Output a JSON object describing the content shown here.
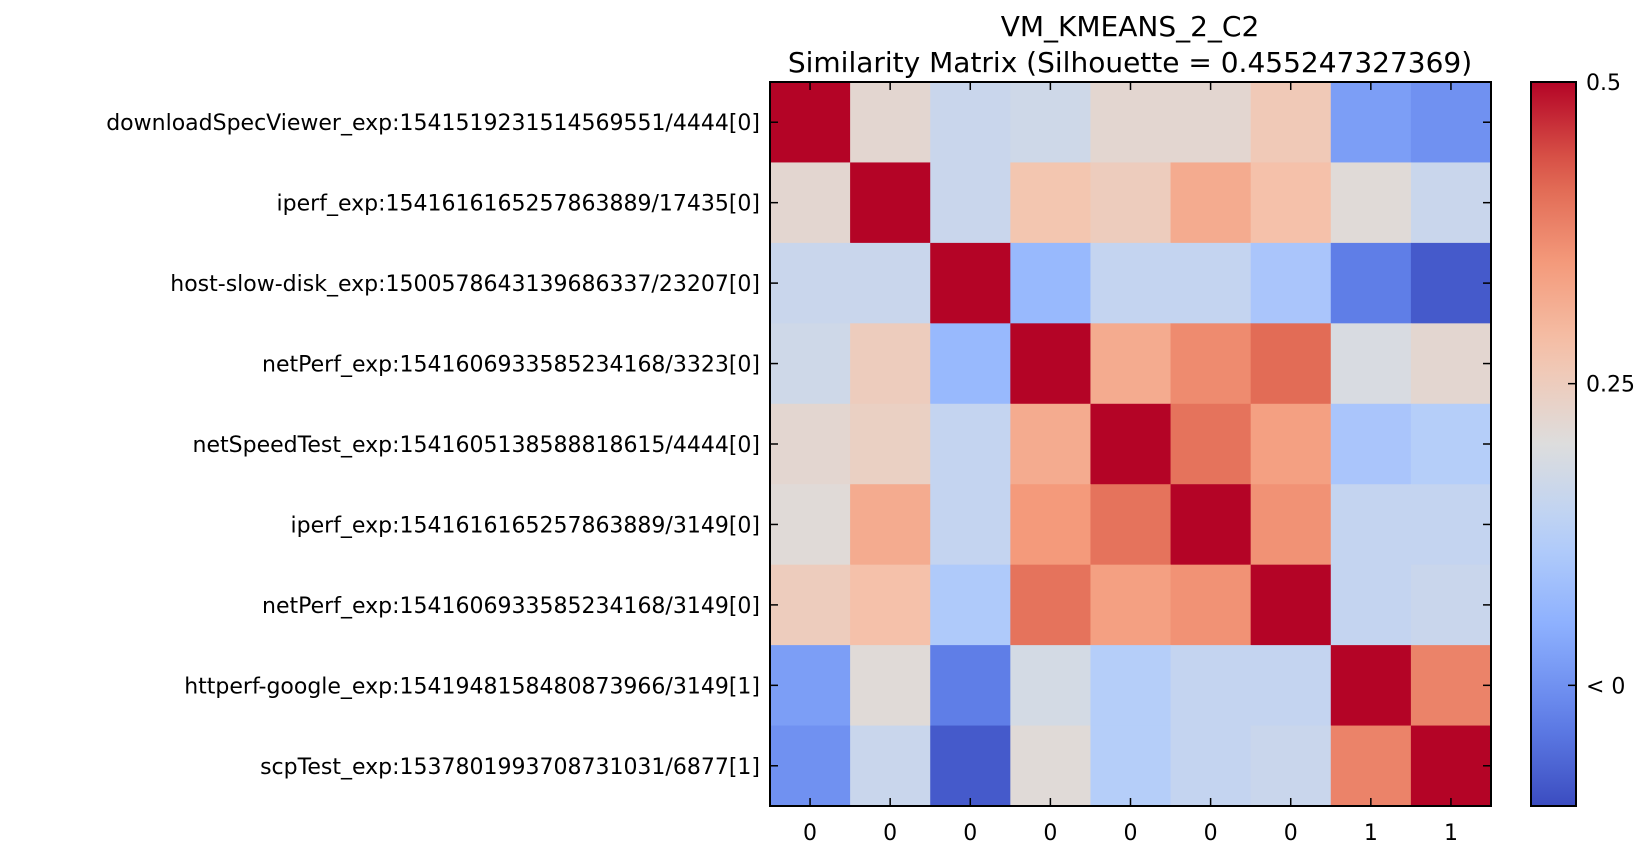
{
  "chart_data": {
    "type": "heatmap",
    "title": "VM_KMEANS_2_C2",
    "subtitle": "Similarity Matrix (Silhouette = 0.455247327369)",
    "row_labels": [
      "downloadSpecViewer_exp:1541519231514569551/4444[0]",
      "iperf_exp:1541616165257863889/17435[0]",
      "host-slow-disk_exp:1500578643139686337/23207[0]",
      "netPerf_exp:1541606933585234168/3323[0]",
      "netSpeedTest_exp:1541605138588818615/4444[0]",
      "iperf_exp:1541616165257863889/3149[0]",
      "netPerf_exp:1541606933585234168/3149[0]",
      "httperf-google_exp:1541948158480873966/3149[1]",
      "scpTest_exp:1537801993708731031/6877[1]"
    ],
    "col_labels": [
      "0",
      "0",
      "0",
      "0",
      "0",
      "0",
      "0",
      "1",
      "1"
    ],
    "values": [
      [
        0.5,
        0.22,
        0.16,
        0.17,
        0.22,
        0.22,
        0.26,
        0.02,
        0.0
      ],
      [
        0.22,
        0.5,
        0.16,
        0.27,
        0.25,
        0.32,
        0.28,
        0.21,
        0.16
      ],
      [
        0.16,
        0.16,
        0.5,
        0.07,
        0.15,
        0.15,
        0.1,
        -0.03,
        -0.08
      ],
      [
        0.17,
        0.25,
        0.07,
        0.5,
        0.32,
        0.37,
        0.41,
        0.19,
        0.22
      ],
      [
        0.22,
        0.24,
        0.15,
        0.32,
        0.5,
        0.4,
        0.34,
        0.1,
        0.12
      ],
      [
        0.21,
        0.32,
        0.15,
        0.35,
        0.4,
        0.5,
        0.36,
        0.15,
        0.15
      ],
      [
        0.25,
        0.28,
        0.11,
        0.4,
        0.34,
        0.36,
        0.5,
        0.15,
        0.16
      ],
      [
        0.02,
        0.21,
        -0.03,
        0.18,
        0.12,
        0.15,
        0.15,
        0.5,
        0.38
      ],
      [
        0.0,
        0.16,
        -0.08,
        0.21,
        0.12,
        0.15,
        0.16,
        0.38,
        0.5
      ]
    ],
    "color_scale": {
      "colormap": "coolwarm",
      "vmin": -0.1,
      "vmax": 0.5,
      "low_color": "#3b4cc0",
      "high_color": "#b40426"
    },
    "colorbar": {
      "ticks": [
        {
          "value": 0.5,
          "label": "0.5"
        },
        {
          "value": 0.25,
          "label": "0.25"
        },
        {
          "value": 0.0,
          "label": "< 0"
        }
      ]
    }
  }
}
